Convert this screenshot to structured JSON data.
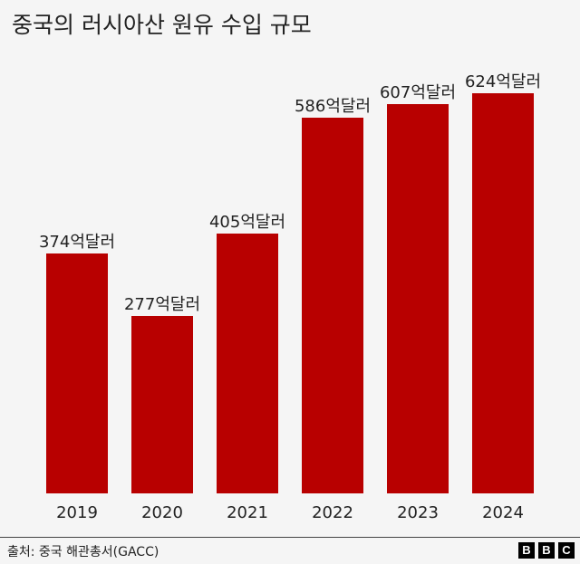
{
  "title": "중국의 러시아산 원유 수입 규모",
  "source": "출처: 중국 해관총서(GACC)",
  "logo": [
    "B",
    "B",
    "C"
  ],
  "colors": {
    "bar": "#b80000",
    "background": "#f5f5f5"
  },
  "chart_data": {
    "type": "bar",
    "title": "중국의 러시아산 원유 수입 규모",
    "xlabel": "",
    "ylabel": "",
    "unit": "억달러",
    "categories": [
      "2019",
      "2020",
      "2021",
      "2022",
      "2023",
      "2024"
    ],
    "values": [
      374,
      277,
      405,
      586,
      607,
      624
    ],
    "labels": [
      "374억달러",
      "277억달러",
      "405억달러",
      "586억달러",
      "607억달러",
      "624억달러"
    ],
    "grid": false,
    "legend": null
  }
}
